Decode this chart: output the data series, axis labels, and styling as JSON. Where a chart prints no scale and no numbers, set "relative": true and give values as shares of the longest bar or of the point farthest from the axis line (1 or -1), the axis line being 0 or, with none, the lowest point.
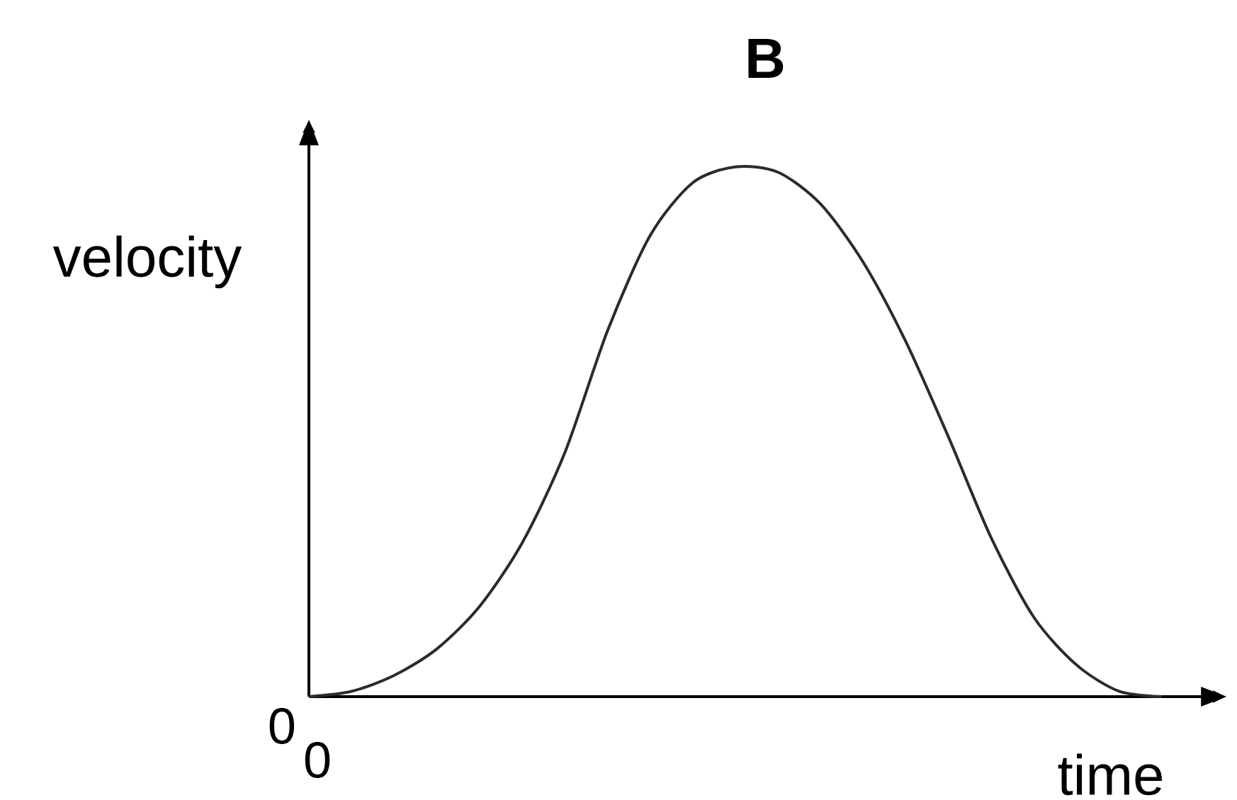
{
  "chart_data": {
    "type": "line",
    "title": "B",
    "xlabel": "time",
    "ylabel": "velocity",
    "categories": [
      null,
      null,
      null,
      null,
      null,
      null,
      null,
      null,
      null,
      null,
      null,
      null,
      null,
      null,
      null,
      null,
      null,
      null,
      null,
      null,
      null
    ],
    "values": [
      0,
      0.01,
      0.04,
      0.09,
      0.17,
      0.29,
      0.46,
      0.69,
      0.87,
      0.97,
      1,
      0.99,
      0.93,
      0.82,
      0.67,
      0.49,
      0.3,
      0.15,
      0.06,
      0.01,
      0
    ],
    "color": "#2b2b2b",
    "relative": true,
    "marker": "none",
    "annotations": [
      "0",
      "0"
    ]
  }
}
